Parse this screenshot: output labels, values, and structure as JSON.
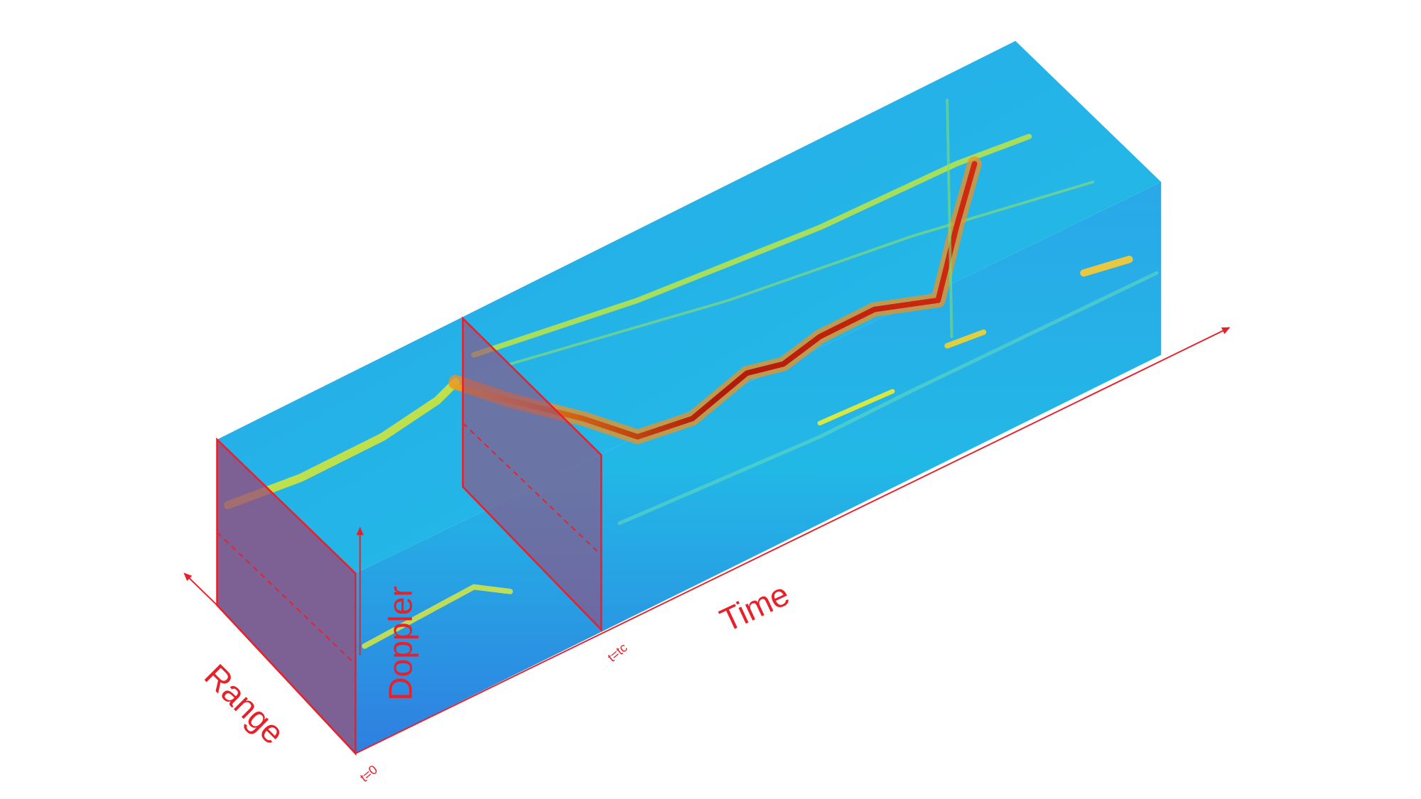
{
  "labels": {
    "range": "Range",
    "doppler": "Doppler",
    "time": "Time",
    "t0": "t=0",
    "tc": "t=tc"
  }
}
